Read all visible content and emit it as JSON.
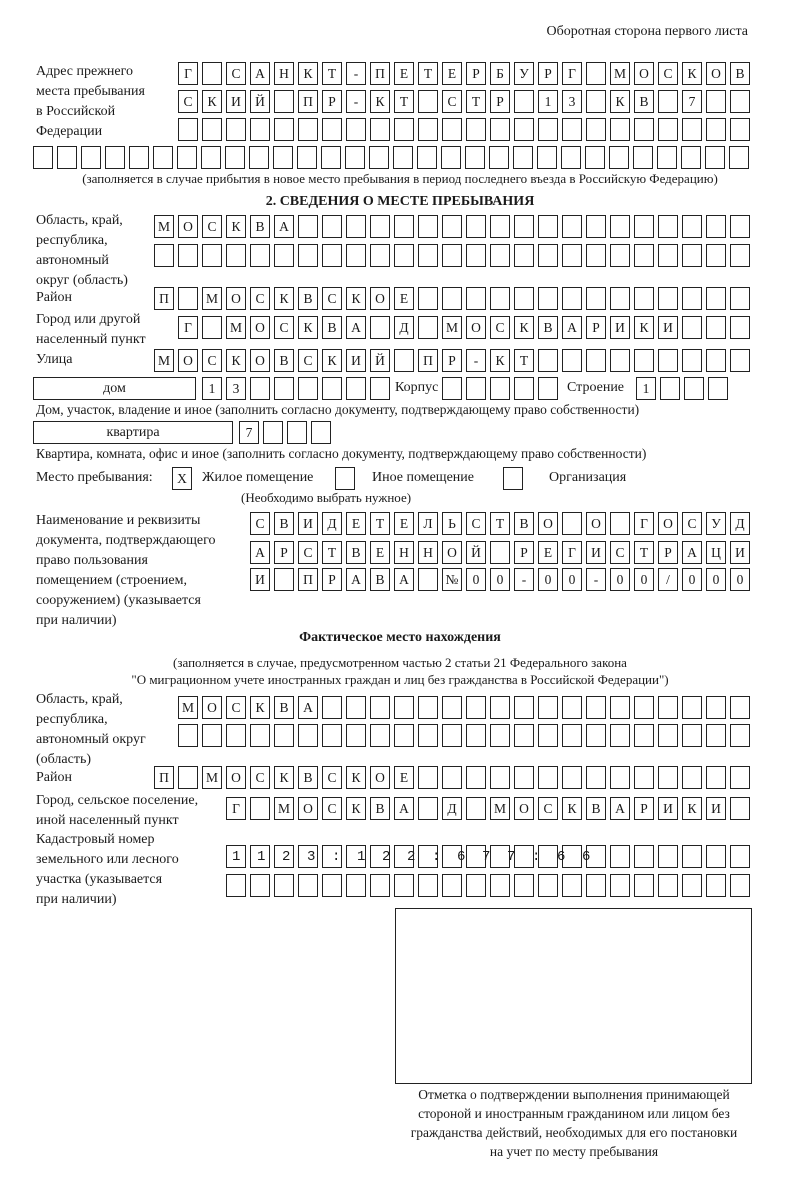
{
  "header": "Оборотная сторона первого листа",
  "prev_address": {
    "label": "Адрес прежнего\nместа пребывания\nв Российской\nФедерации",
    "rows": [
      "Г САНКТ-ПЕТЕРБУРГ МОСКОВ",
      "СКИЙ ПР-КТ СТР 13 КВ 7",
      "",
      ""
    ],
    "note": "(заполняется в случае прибытия в новое место пребывания в период последнего въезда в Российскую Федерацию)"
  },
  "section2": {
    "title": "2. СВЕДЕНИЯ О МЕСТЕ ПРЕБЫВАНИЯ",
    "region_label": "Область, край,\nреспублика,\nавтономный\nокруг (область)",
    "region_rows": [
      "МОСКВА",
      ""
    ],
    "district_label": "Район",
    "district": "П МОСКВСКОЕ",
    "city_label": "Город или другой\nнаселенный пункт",
    "city": "Г МОСКВА Д МОСКВАРИКИ",
    "street_label": "Улица",
    "street": "МОСКОВСКИЙ ПР-КТ",
    "house_type": "дом",
    "house": "13",
    "building_label": "Корпус",
    "building": "",
    "structure_label": "Строение",
    "structure": "1",
    "house_note": "Дом, участок, владение и иное (заполнить согласно документу, подтверждающему право собственности)",
    "apt_type": "квартира",
    "apt": "7",
    "apt_note": "Квартира, комната, офис и иное (заполнить согласно документу, подтверждающему право собственности)",
    "stay_label": "Место пребывания:",
    "stay_options": [
      {
        "label": "Жилое помещение",
        "mark": "Х"
      },
      {
        "label": "Иное помещение",
        "mark": ""
      },
      {
        "label": "Организация",
        "mark": ""
      }
    ],
    "stay_note": "(Необходимо выбрать нужное)",
    "doc_label": "Наименование и реквизиты\nдокумента, подтверждающего\nправо пользования\nпомещением (строением,\nсооружением) (указывается\nпри наличии)",
    "doc_rows": [
      "СВИДЕТЕЛЬСТВО О ГОСУД",
      "АРСТВЕННОЙ РЕГИСТРАЦИ",
      "И ПРАВА №00-00-00/000"
    ]
  },
  "actual": {
    "title": "Фактическое место нахождения",
    "note1": "(заполняется в случае, предусмотренном частью 2 статьи 21 Федерального закона",
    "note2": "\"О миграционном учете иностранных граждан и лиц без гражданства в Российской Федерации\")",
    "region_label": "Область, край,\nреспублика,\nавтономный округ\n(область)",
    "region_rows": [
      "МОСКВА",
      ""
    ],
    "district_label": "Район",
    "district": "П МОСКВСКОЕ",
    "city_label": "Город, сельское поселение,\nиной населенный пункт",
    "city": "Г МОСКВА Д МОСКВАРИКИ",
    "cadastre_label": "Кадастровый номер\nземельного или лесного\nучастка (указывается\nпри наличии)",
    "cadastre_rows": [
      "1123:122:677:66",
      ""
    ]
  },
  "stamp_caption": "Отметка о подтверждении выполнения принимающей\nстороной и иностранным гражданином или лицом без\nгражданства действий, необходимых для его постановки\nна учет по месту пребывания"
}
